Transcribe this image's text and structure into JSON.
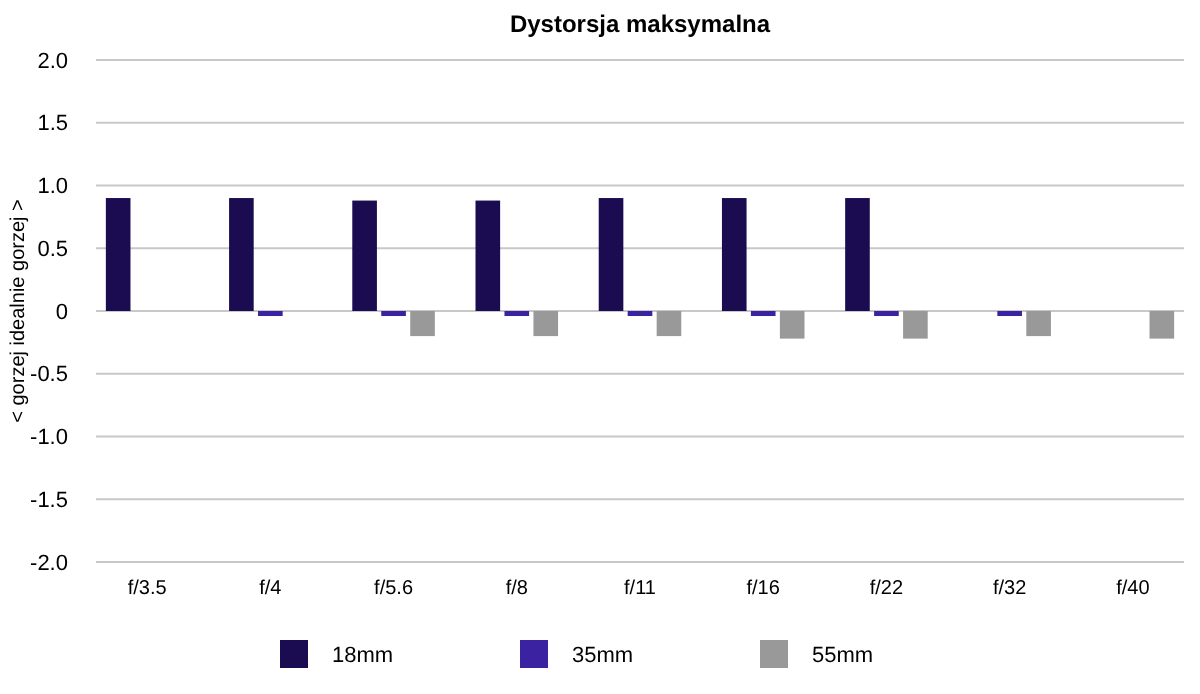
{
  "chart_data": {
    "type": "bar",
    "title": "Dystorsja maksymalna",
    "ylabel": "< gorzej idealnie gorzej >",
    "categories": [
      "f/3.5",
      "f/4",
      "f/5.6",
      "f/8",
      "f/11",
      "f/16",
      "f/22",
      "f/32",
      "f/40"
    ],
    "series": [
      {
        "name": "18mm",
        "color": "#1b0c52",
        "values": [
          0.9,
          0.9,
          0.88,
          0.88,
          0.9,
          0.9,
          0.9,
          null,
          null
        ]
      },
      {
        "name": "35mm",
        "color": "#3b22a0",
        "values": [
          null,
          -0.04,
          -0.04,
          -0.04,
          -0.04,
          -0.04,
          -0.04,
          -0.04,
          null
        ]
      },
      {
        "name": "55mm",
        "color": "#999999",
        "values": [
          null,
          null,
          -0.2,
          -0.2,
          -0.2,
          -0.22,
          -0.22,
          -0.2,
          -0.22
        ]
      }
    ],
    "ylim": [
      -2,
      2
    ],
    "yticks": [
      {
        "value": -2,
        "label": "-2.0"
      },
      {
        "value": -1.5,
        "label": "-1.5"
      },
      {
        "value": -1,
        "label": "-1.0"
      },
      {
        "value": -0.5,
        "label": "-0.5"
      },
      0,
      {
        "value": 0.5,
        "label": "0.5"
      },
      {
        "value": 1,
        "label": "1.0"
      },
      {
        "value": 1.5,
        "label": "1.5"
      },
      {
        "value": 2,
        "label": "2.0"
      }
    ],
    "grid": "y",
    "legend": "bottom"
  }
}
